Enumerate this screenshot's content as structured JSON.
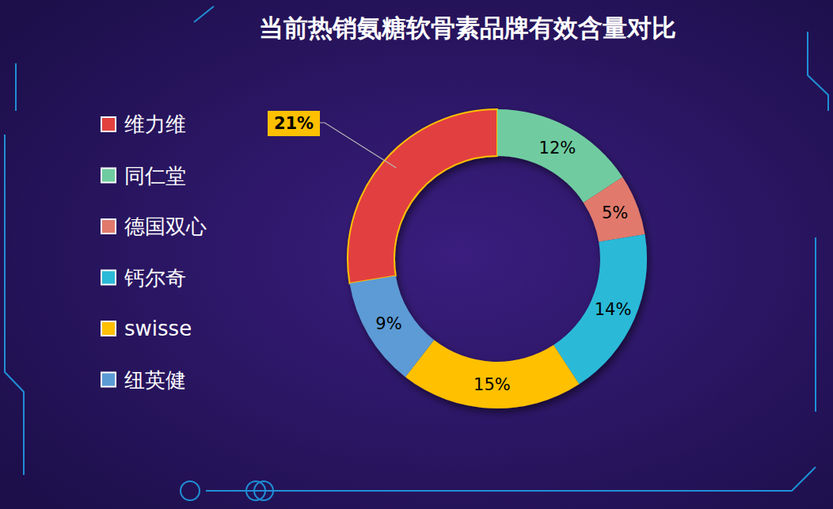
{
  "chart_data": {
    "type": "pie",
    "title": "当前热销氨糖软骨素品牌有效含量对比",
    "categories": [
      "维力维",
      "同仁堂",
      "德国双心",
      "钙尔奇",
      "swisse",
      "纽英健"
    ],
    "values": [
      21,
      12,
      5,
      14,
      15,
      9
    ],
    "value_labels": [
      "21%",
      "12%",
      "5%",
      "14%",
      "15%",
      "9%"
    ],
    "colors": [
      "#e2403f",
      "#6fcca0",
      "#e17a6c",
      "#2bbad8",
      "#ffc000",
      "#5b9bd5"
    ],
    "data_labels": true,
    "legend": "left"
  }
}
